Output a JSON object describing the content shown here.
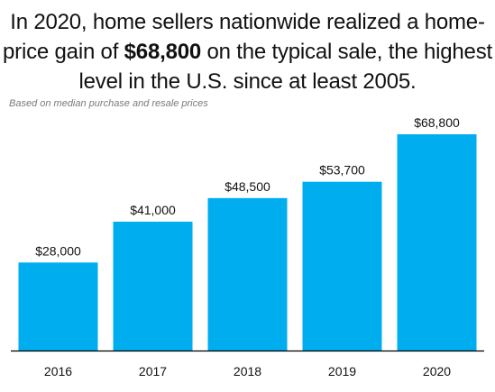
{
  "title": {
    "part1": "In 2020, home sellers nationwide realized a home-price gain of ",
    "emphasis": "$68,800",
    "part2": " on the typical sale, the highest level in the U.S. since at least 2005."
  },
  "subtitle": "Based on median purchase and resale prices",
  "colors": {
    "bar": "#00AEEF",
    "axis": "#000000"
  },
  "chart_data": {
    "type": "bar",
    "categories": [
      "2016",
      "2017",
      "2018",
      "2019",
      "2020"
    ],
    "values": [
      28000,
      41000,
      48500,
      53700,
      68800
    ],
    "data_labels": [
      "$28,000",
      "$41,000",
      "$48,500",
      "$53,700",
      "$68,800"
    ],
    "title": "",
    "xlabel": "",
    "ylabel": "",
    "ylim": [
      0,
      68800
    ],
    "grid": false,
    "legend": "none"
  }
}
